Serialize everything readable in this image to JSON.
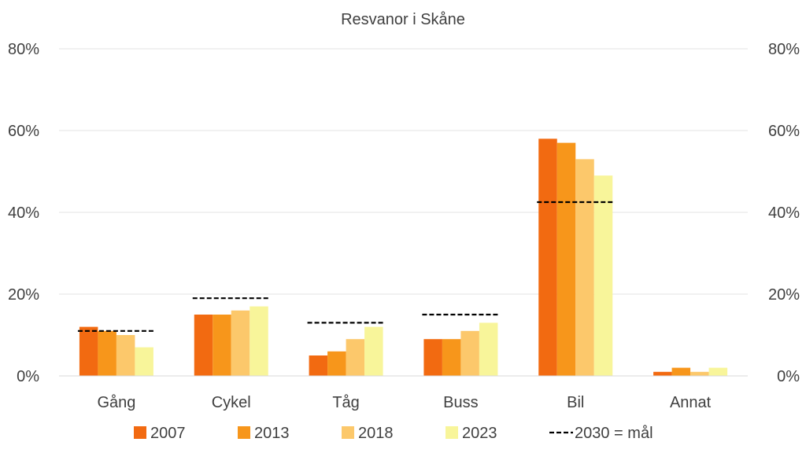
{
  "chart_data": {
    "type": "bar",
    "title": "Resvanor i Skåne",
    "categories": [
      "Gång",
      "Cykel",
      "Tåg",
      "Buss",
      "Bil",
      "Annat"
    ],
    "series": [
      {
        "name": "2007",
        "color": "#f26a11",
        "values": [
          12,
          15,
          5,
          9,
          58,
          1
        ]
      },
      {
        "name": "2013",
        "color": "#f7961b",
        "values": [
          11,
          15,
          6,
          9,
          57,
          2
        ]
      },
      {
        "name": "2018",
        "color": "#fcc86b",
        "values": [
          10,
          16,
          9,
          11,
          53,
          1
        ]
      },
      {
        "name": "2023",
        "color": "#f8f59a",
        "values": [
          7,
          17,
          12,
          13,
          49,
          2
        ]
      }
    ],
    "target": {
      "name": "2030 = mål",
      "values": [
        11,
        19,
        13,
        15,
        42.5,
        null
      ]
    },
    "ylim": [
      0,
      80
    ],
    "yticks": [
      "0%",
      "20%",
      "40%",
      "60%",
      "80%"
    ],
    "ytick_values": [
      0,
      20,
      40,
      60,
      80
    ],
    "secondary_axis": true,
    "grid": true,
    "legend": "bottom",
    "xlabel": "",
    "ylabel": ""
  }
}
